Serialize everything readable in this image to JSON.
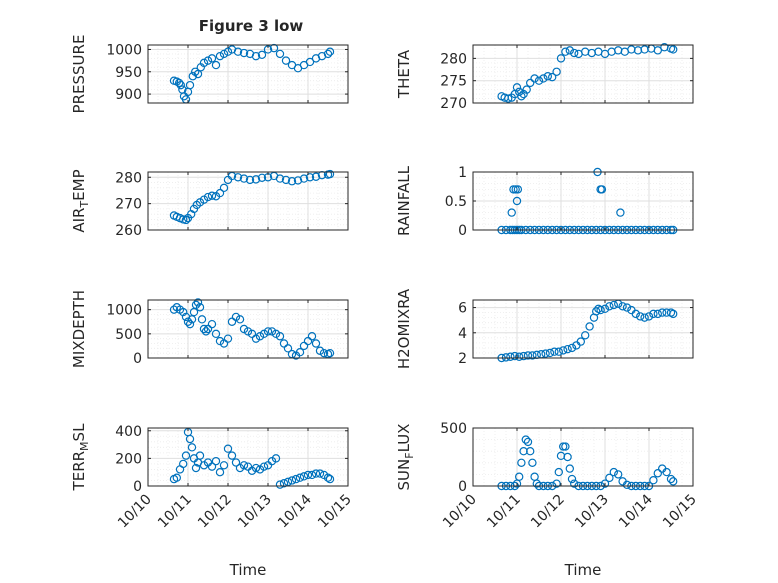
{
  "figure": {
    "title": "Figure 3 low"
  },
  "x_tick_labels": [
    "10/10",
    "10/11",
    "10/12",
    "10/13",
    "10/14",
    "10/15"
  ],
  "x_axis_label": "Time",
  "colors": {
    "marker": "#0072BD",
    "axis": "#262626",
    "grid": "#dfdfdf"
  },
  "chart_data": [
    {
      "type": "scatter",
      "ylabel": "PRESSURE",
      "ylim": [
        880,
        1010
      ],
      "yticks": [
        900,
        950,
        1000
      ],
      "xlim": [
        0,
        5
      ],
      "marker": "open-circle",
      "x": [
        0.65,
        0.72,
        0.78,
        0.82,
        0.86,
        0.9,
        0.95,
        1.0,
        1.05,
        1.12,
        1.18,
        1.25,
        1.32,
        1.4,
        1.5,
        1.6,
        1.7,
        1.8,
        1.9,
        2.0,
        2.1,
        2.25,
        2.4,
        2.55,
        2.7,
        2.85,
        3.0,
        3.15,
        3.3,
        3.45,
        3.6,
        3.75,
        3.9,
        4.05,
        4.2,
        4.35,
        4.5,
        4.55
      ],
      "y": [
        930,
        928,
        925,
        920,
        910,
        895,
        888,
        905,
        920,
        940,
        950,
        945,
        960,
        970,
        975,
        980,
        965,
        985,
        990,
        995,
        1000,
        995,
        992,
        990,
        985,
        988,
        1000,
        1003,
        990,
        975,
        965,
        958,
        965,
        972,
        980,
        985,
        990,
        995
      ]
    },
    {
      "type": "scatter",
      "ylabel": "THETA",
      "ylim": [
        270,
        283
      ],
      "yticks": [
        270,
        275,
        280
      ],
      "xlim": [
        0,
        5
      ],
      "marker": "open-circle",
      "x": [
        0.65,
        0.72,
        0.8,
        0.88,
        0.95,
        1.0,
        1.05,
        1.1,
        1.15,
        1.22,
        1.3,
        1.4,
        1.5,
        1.6,
        1.7,
        1.8,
        1.9,
        2.0,
        2.1,
        2.2,
        2.3,
        2.4,
        2.55,
        2.7,
        2.85,
        3.0,
        3.15,
        3.3,
        3.45,
        3.6,
        3.75,
        3.9,
        4.05,
        4.2,
        4.35,
        4.5,
        4.55
      ],
      "y": [
        271.5,
        271.2,
        271.0,
        271.2,
        272,
        273.5,
        272.5,
        271.5,
        272,
        273,
        274.5,
        275.5,
        275,
        275.5,
        276,
        275.8,
        277,
        280,
        281.5,
        281.8,
        281.2,
        281,
        281.5,
        281.2,
        281.5,
        281,
        281.5,
        281.8,
        281.5,
        282,
        281.8,
        282,
        282.2,
        281.8,
        282.5,
        282.2,
        282
      ]
    },
    {
      "type": "scatter",
      "ylabel": "AIR_TEMP",
      "ylim": [
        260,
        282
      ],
      "yticks": [
        260,
        270,
        280
      ],
      "xlim": [
        0,
        5
      ],
      "marker": "open-circle",
      "x": [
        0.65,
        0.72,
        0.8,
        0.88,
        0.95,
        1.0,
        1.08,
        1.15,
        1.22,
        1.3,
        1.4,
        1.5,
        1.6,
        1.7,
        1.8,
        1.9,
        2.0,
        2.1,
        2.25,
        2.4,
        2.55,
        2.7,
        2.85,
        3.0,
        3.15,
        3.3,
        3.45,
        3.6,
        3.75,
        3.9,
        4.05,
        4.2,
        4.35,
        4.5,
        4.55
      ],
      "y": [
        265.5,
        265,
        264.5,
        264,
        263.8,
        264.5,
        266,
        268,
        269.5,
        270.5,
        271.5,
        272.5,
        273,
        272.8,
        274,
        276,
        279,
        280.5,
        280,
        279.5,
        279,
        279.2,
        279.8,
        280,
        280.5,
        279.5,
        279,
        278.5,
        278.8,
        279.5,
        280,
        280.2,
        280.8,
        281,
        281.2
      ]
    },
    {
      "type": "scatter",
      "ylabel": "RAINFALL",
      "ylim": [
        0,
        1
      ],
      "yticks": [
        0,
        0.5,
        1
      ],
      "xlim": [
        0,
        5
      ],
      "marker": "open-circle",
      "x": [
        0.65,
        0.75,
        0.85,
        0.9,
        0.95,
        1.0,
        1.05,
        1.1,
        1.2,
        1.3,
        1.4,
        1.5,
        1.6,
        1.7,
        1.8,
        1.9,
        2.0,
        2.1,
        2.2,
        2.3,
        2.4,
        2.5,
        2.6,
        2.7,
        2.8,
        2.9,
        3.0,
        3.1,
        3.2,
        3.3,
        3.4,
        3.5,
        3.6,
        3.7,
        3.8,
        3.9,
        4.0,
        4.1,
        4.2,
        4.3,
        4.4,
        4.5,
        4.55,
        0.88,
        0.92,
        0.97,
        1.02,
        1.0,
        2.83,
        2.9,
        2.93,
        3.35
      ],
      "y": [
        0,
        0,
        0,
        0,
        0,
        0,
        0,
        0,
        0,
        0,
        0,
        0,
        0,
        0,
        0,
        0,
        0,
        0,
        0,
        0,
        0,
        0,
        0,
        0,
        0,
        0,
        0,
        0,
        0,
        0,
        0,
        0,
        0,
        0,
        0,
        0,
        0,
        0,
        0,
        0,
        0,
        0,
        0,
        0.3,
        0.7,
        0.7,
        0.7,
        0.5,
        1.0,
        0.7,
        0.7,
        0.3
      ]
    },
    {
      "type": "scatter",
      "ylabel": "MIXDEPTH",
      "ylim": [
        0,
        1200
      ],
      "yticks": [
        0,
        500,
        1000
      ],
      "xlim": [
        0,
        5
      ],
      "marker": "open-circle",
      "x": [
        0.65,
        0.72,
        0.8,
        0.88,
        0.95,
        1.0,
        1.05,
        1.1,
        1.15,
        1.2,
        1.25,
        1.3,
        1.35,
        1.4,
        1.45,
        1.5,
        1.6,
        1.7,
        1.8,
        1.9,
        2.0,
        2.1,
        2.2,
        2.3,
        2.4,
        2.5,
        2.6,
        2.7,
        2.8,
        2.9,
        3.0,
        3.1,
        3.2,
        3.3,
        3.4,
        3.5,
        3.6,
        3.7,
        3.8,
        3.9,
        4.0,
        4.1,
        4.2,
        4.3,
        4.4,
        4.5,
        4.55
      ],
      "y": [
        1000,
        1050,
        1000,
        950,
        850,
        750,
        700,
        800,
        950,
        1100,
        1150,
        1050,
        800,
        600,
        550,
        600,
        700,
        500,
        350,
        300,
        400,
        750,
        850,
        800,
        600,
        550,
        500,
        400,
        450,
        500,
        550,
        550,
        500,
        450,
        300,
        200,
        80,
        50,
        120,
        250,
        350,
        450,
        300,
        150,
        100,
        80,
        100
      ]
    },
    {
      "type": "scatter",
      "ylabel": "H2OMIXRA",
      "ylim": [
        2,
        6.6
      ],
      "yticks": [
        2,
        4,
        6
      ],
      "xlim": [
        0,
        5
      ],
      "marker": "open-circle",
      "x": [
        0.65,
        0.75,
        0.85,
        0.95,
        1.05,
        1.15,
        1.25,
        1.35,
        1.45,
        1.55,
        1.65,
        1.75,
        1.85,
        1.95,
        2.05,
        2.15,
        2.25,
        2.35,
        2.45,
        2.55,
        2.65,
        2.75,
        2.8,
        2.85,
        2.9,
        3.0,
        3.1,
        3.2,
        3.3,
        3.4,
        3.5,
        3.6,
        3.7,
        3.8,
        3.9,
        4.0,
        4.1,
        4.2,
        4.3,
        4.4,
        4.5,
        4.55
      ],
      "y": [
        2,
        2.05,
        2.1,
        2.15,
        2.1,
        2.15,
        2.2,
        2.2,
        2.25,
        2.3,
        2.35,
        2.4,
        2.5,
        2.5,
        2.6,
        2.7,
        2.8,
        3,
        3.3,
        3.8,
        4.5,
        5.2,
        5.7,
        5.9,
        5.8,
        5.9,
        6.1,
        6.2,
        6.3,
        6.1,
        6.0,
        5.8,
        5.5,
        5.3,
        5.2,
        5.3,
        5.5,
        5.5,
        5.6,
        5.6,
        5.6,
        5.5
      ]
    },
    {
      "type": "scatter",
      "ylabel": "TERR_MSL",
      "ylim": [
        0,
        420
      ],
      "yticks": [
        0,
        200,
        400
      ],
      "xlim": [
        0,
        5
      ],
      "marker": "open-circle",
      "x": [
        0.65,
        0.72,
        0.8,
        0.88,
        0.95,
        1.0,
        1.05,
        1.1,
        1.15,
        1.2,
        1.25,
        1.3,
        1.4,
        1.5,
        1.6,
        1.7,
        1.8,
        1.9,
        2.0,
        2.1,
        2.2,
        2.3,
        2.4,
        2.5,
        2.6,
        2.7,
        2.8,
        2.9,
        3.0,
        3.1,
        3.2,
        3.3,
        3.4,
        3.5,
        3.6,
        3.7,
        3.8,
        3.9,
        4.0,
        4.1,
        4.2,
        4.3,
        4.4,
        4.5,
        4.55
      ],
      "y": [
        50,
        60,
        120,
        160,
        220,
        390,
        340,
        280,
        200,
        130,
        170,
        220,
        150,
        170,
        140,
        180,
        100,
        150,
        270,
        220,
        170,
        130,
        150,
        140,
        110,
        130,
        120,
        140,
        150,
        180,
        200,
        10,
        20,
        30,
        40,
        50,
        60,
        70,
        80,
        80,
        90,
        90,
        80,
        60,
        50
      ]
    },
    {
      "type": "scatter",
      "ylabel": "SUN_FLUX",
      "ylim": [
        0,
        500
      ],
      "yticks": [
        0,
        500
      ],
      "xlim": [
        0,
        5
      ],
      "marker": "open-circle",
      "x": [
        0.65,
        0.75,
        0.85,
        0.95,
        1.0,
        1.05,
        1.1,
        1.15,
        1.2,
        1.25,
        1.3,
        1.35,
        1.4,
        1.45,
        1.5,
        1.6,
        1.7,
        1.8,
        1.9,
        1.95,
        2.0,
        2.05,
        2.1,
        2.15,
        2.2,
        2.25,
        2.3,
        2.4,
        2.5,
        2.6,
        2.7,
        2.8,
        2.9,
        3.0,
        3.1,
        3.2,
        3.3,
        3.4,
        3.5,
        3.6,
        3.7,
        3.8,
        3.9,
        4.0,
        4.1,
        4.2,
        4.3,
        4.4,
        4.5,
        4.55
      ],
      "y": [
        0,
        0,
        0,
        0,
        20,
        80,
        200,
        300,
        400,
        380,
        300,
        200,
        80,
        20,
        0,
        0,
        0,
        0,
        20,
        120,
        260,
        340,
        340,
        250,
        150,
        60,
        20,
        0,
        0,
        0,
        0,
        0,
        0,
        20,
        70,
        120,
        100,
        40,
        10,
        0,
        0,
        0,
        0,
        0,
        50,
        110,
        150,
        120,
        60,
        40
      ]
    }
  ]
}
